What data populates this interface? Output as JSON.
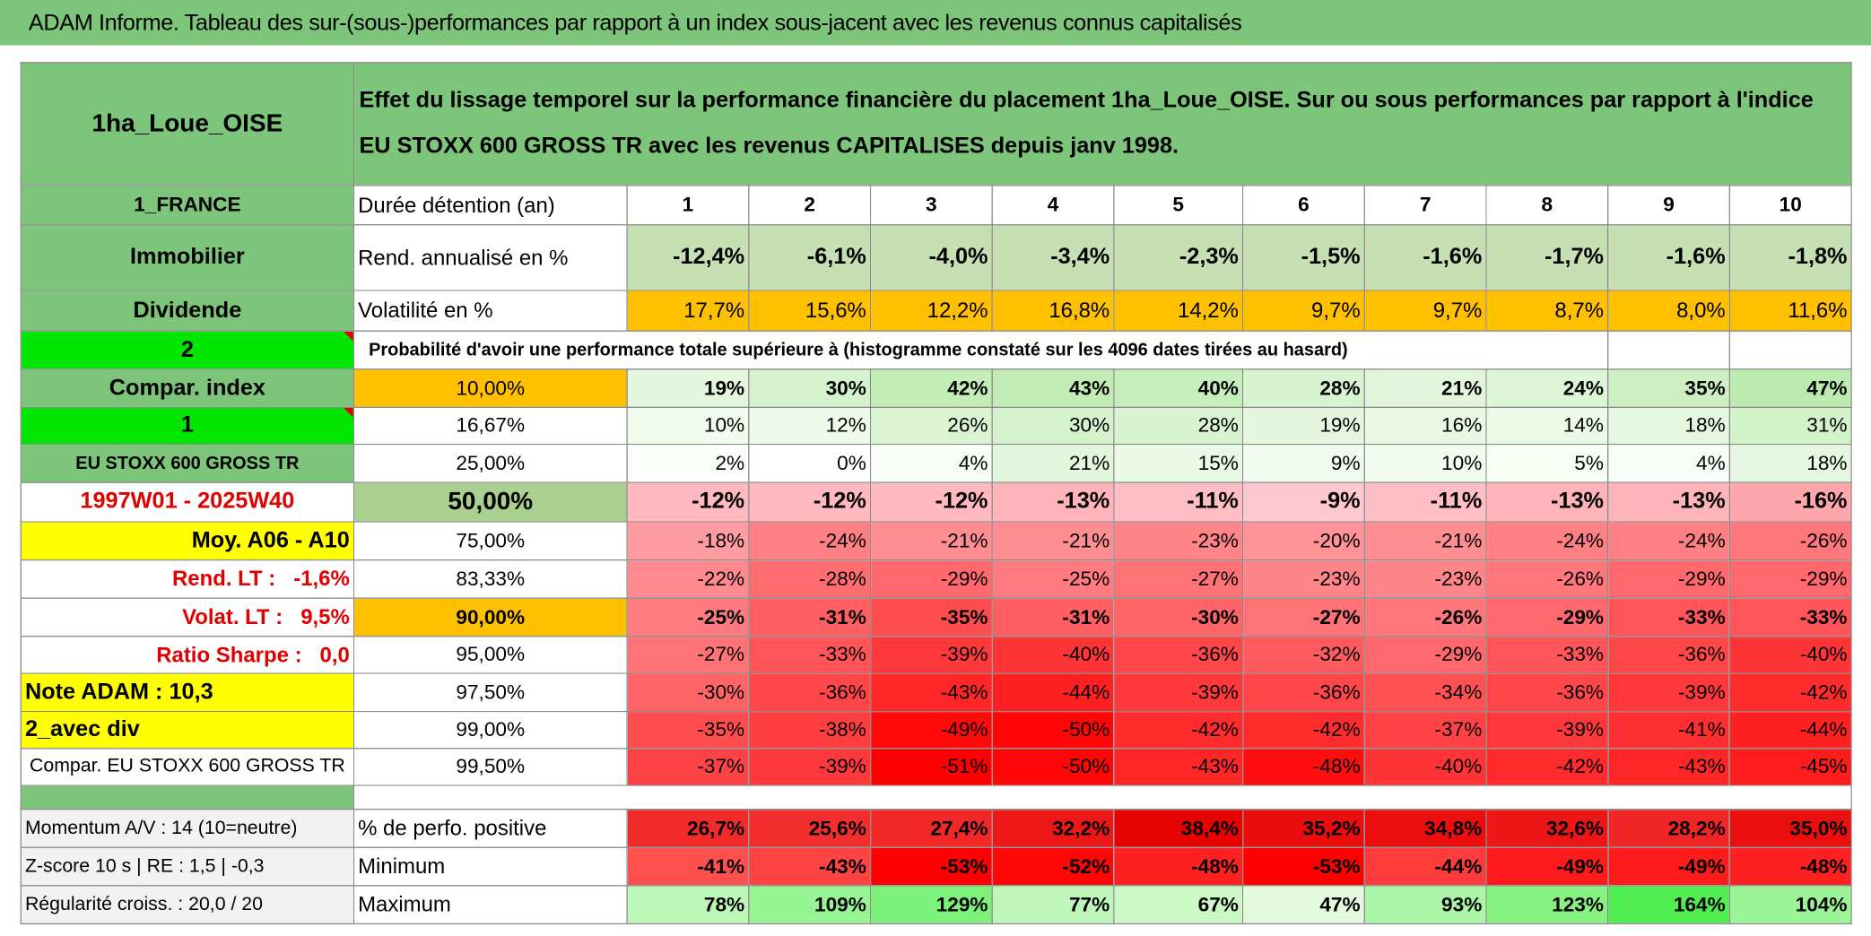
{
  "header": {
    "title": "ADAM Informe. Tableau des sur-(sous-)performances par rapport à un index sous-jacent avec les revenus connus capitalisés"
  },
  "table": {
    "name": "1ha_Loue_OISE",
    "description": "Effet du lissage temporel sur la performance financière du placement 1ha_Loue_OISE. Sur ou sous performances par rapport à l'indice EU STOXX 600 GROSS TR avec les revenus CAPITALISES depuis janv 1998.",
    "rows": [
      {
        "label": "1_FRANCE",
        "caption": "Durée détention (an)",
        "values": [
          1,
          2,
          3,
          4,
          5,
          6,
          7,
          8,
          9,
          10
        ]
      },
      {
        "label": "Immobilier",
        "caption": "Rend. annualisé en %",
        "values": [
          "-12,4%",
          "-6,1%",
          "-4,0%",
          "-3,4%",
          "-2,3%",
          "-1,5%",
          "-1,6%",
          "-1,7%",
          "-1,6%",
          "-1,8%"
        ]
      },
      {
        "label": "Dividende",
        "caption": "Volatilité en %",
        "values": [
          "17,7%",
          "15,6%",
          "12,2%",
          "16,8%",
          "14,2%",
          "9,7%",
          "9,7%",
          "8,7%",
          "8,0%",
          "11,6%"
        ]
      },
      {
        "label": "2",
        "caption": "Probabilité d'avoir une performance totale supérieure à (histogramme constaté sur les 4096 dates tirées au hasard)"
      },
      {
        "label": "Compar. index",
        "caption": "10,00%",
        "values": [
          "19%",
          "30%",
          "42%",
          "43%",
          "40%",
          "28%",
          "21%",
          "24%",
          "35%",
          "47%"
        ]
      },
      {
        "label": "1",
        "caption": "16,67%",
        "values": [
          "10%",
          "12%",
          "26%",
          "30%",
          "28%",
          "19%",
          "16%",
          "14%",
          "18%",
          "31%"
        ]
      },
      {
        "label": "EU STOXX 600 GROSS TR",
        "caption": "25,00%",
        "values": [
          "2%",
          "0%",
          "4%",
          "21%",
          "15%",
          "9%",
          "10%",
          "5%",
          "4%",
          "18%"
        ]
      },
      {
        "label": "1997W01 - 2025W40",
        "caption": "50,00%",
        "values": [
          "-12%",
          "-12%",
          "-12%",
          "-13%",
          "-11%",
          "-9%",
          "-11%",
          "-13%",
          "-13%",
          "-16%"
        ]
      },
      {
        "label": "Moy. A06 - A10",
        "caption": "75,00%",
        "values": [
          "-18%",
          "-24%",
          "-21%",
          "-21%",
          "-23%",
          "-20%",
          "-21%",
          "-24%",
          "-24%",
          "-26%"
        ]
      },
      {
        "label": "Rend. LT :   -1,6%",
        "caption": "83,33%",
        "values": [
          "-22%",
          "-28%",
          "-29%",
          "-25%",
          "-27%",
          "-23%",
          "-23%",
          "-26%",
          "-29%",
          "-29%"
        ]
      },
      {
        "label": "Volat. LT :   9,5%",
        "caption": "90,00%",
        "values": [
          "-25%",
          "-31%",
          "-35%",
          "-31%",
          "-30%",
          "-27%",
          "-26%",
          "-29%",
          "-33%",
          "-33%"
        ]
      },
      {
        "label": "Ratio Sharpe :   0,0",
        "caption": "95,00%",
        "values": [
          "-27%",
          "-33%",
          "-39%",
          "-40%",
          "-36%",
          "-32%",
          "-29%",
          "-33%",
          "-36%",
          "-40%"
        ]
      },
      {
        "label": "Note ADAM : 10,3",
        "caption": "97,50%",
        "values": [
          "-30%",
          "-36%",
          "-43%",
          "-44%",
          "-39%",
          "-36%",
          "-34%",
          "-36%",
          "-39%",
          "-42%"
        ]
      },
      {
        "label": "2_avec div",
        "caption": "99,00%",
        "values": [
          "-35%",
          "-38%",
          "-49%",
          "-50%",
          "-42%",
          "-42%",
          "-37%",
          "-39%",
          "-41%",
          "-44%"
        ]
      },
      {
        "label": "Compar. EU STOXX 600 GROSS TR",
        "caption": "99,50%",
        "values": [
          "-37%",
          "-39%",
          "-51%",
          "-50%",
          "-43%",
          "-48%",
          "-40%",
          "-42%",
          "-43%",
          "-45%"
        ]
      },
      {
        "label": "Momentum A/V : 14 (10=neutre)",
        "caption": "% de perfo. positive",
        "values": [
          "26,7%",
          "25,6%",
          "27,4%",
          "32,2%",
          "38,4%",
          "35,2%",
          "34,8%",
          "32,6%",
          "28,2%",
          "35,0%"
        ]
      },
      {
        "label": "Z-score 10 s | RE : 1,5 | -0,3",
        "caption": "Minimum",
        "values": [
          "-41%",
          "-43%",
          "-53%",
          "-52%",
          "-48%",
          "-53%",
          "-44%",
          "-49%",
          "-49%",
          "-48%"
        ]
      },
      {
        "label": "Régularité croiss. : 20,0 / 20",
        "caption": "Maximum",
        "values": [
          "78%",
          "109%",
          "129%",
          "77%",
          "67%",
          "47%",
          "93%",
          "123%",
          "164%",
          "104%"
        ]
      }
    ]
  }
}
